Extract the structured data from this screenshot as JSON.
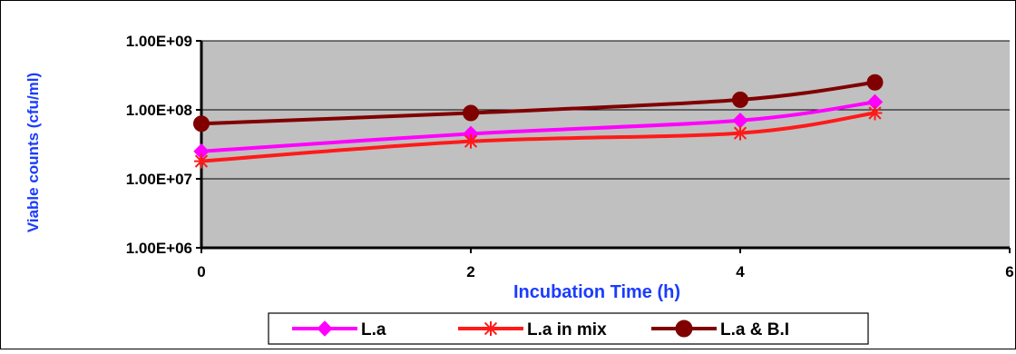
{
  "chart_data": {
    "type": "line",
    "title": "",
    "xlabel": "Incubation Time (h)",
    "ylabel": "Viable counts (cfu/ml)",
    "xlim": [
      0,
      6
    ],
    "ylim": [
      1000000,
      1000000000
    ],
    "y_scale": "log",
    "x_ticks": [
      0,
      2,
      4,
      6
    ],
    "x_tick_labels": [
      "0",
      "2",
      "4",
      "6"
    ],
    "y_ticks": [
      1000000,
      10000000,
      100000000,
      1000000000
    ],
    "y_tick_labels": [
      "1.00E+06",
      "1.00E+07",
      "1.00E+08",
      "1.00E+09"
    ],
    "grid": "horizontal",
    "legend_position": "bottom",
    "plot_background": "#c0c0c0",
    "axis_label_color": "#1a3cff",
    "series": [
      {
        "name": "L.a",
        "color": "#ff00ff",
        "marker": "diamond",
        "x": [
          0,
          2,
          4,
          5
        ],
        "values": [
          25000000,
          45000000,
          70000000,
          130000000
        ]
      },
      {
        "name": "L.a in mix",
        "color": "#ff1a1a",
        "marker": "asterisk",
        "x": [
          0,
          2,
          4,
          5
        ],
        "values": [
          18000000,
          35000000,
          46000000,
          90000000
        ]
      },
      {
        "name": "L.a & B.I",
        "color": "#800000",
        "marker": "circle",
        "x": [
          0,
          2,
          4,
          5
        ],
        "values": [
          63000000,
          90000000,
          140000000,
          250000000
        ]
      }
    ]
  }
}
